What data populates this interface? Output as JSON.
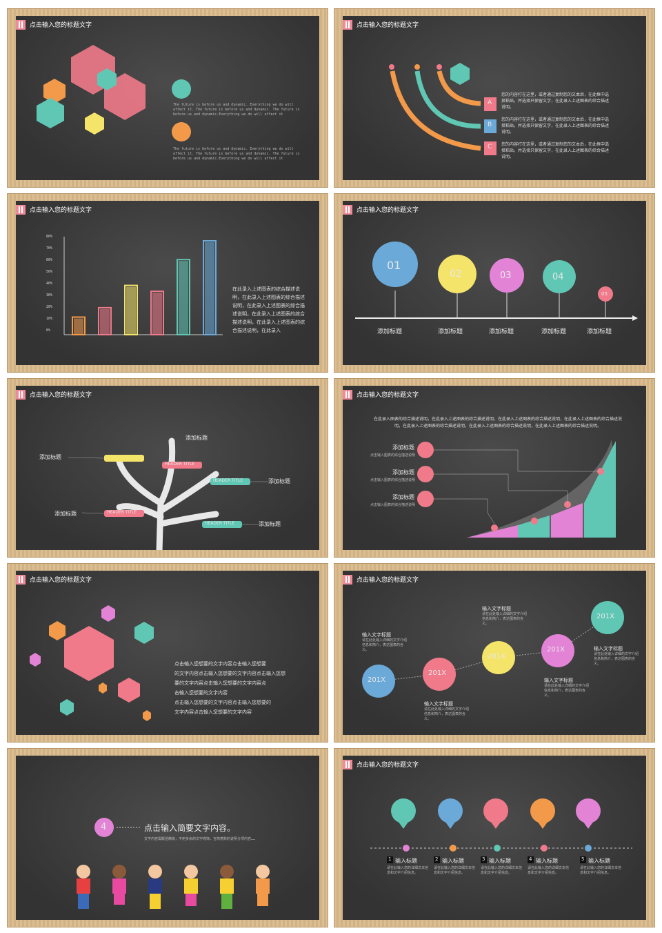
{
  "header_title": "点击输入您的标题文字",
  "slide1": {
    "texts": [
      "The future is before us and dynamic. Everything we do will affect it. The future is before us and dynamic. The future is before us and dynamic.Everything we do will affect it",
      "The future is before us and dynamic. Everything we do will affect it. The future is before us and dynamic. The future is before us and dynamic.Everything we do will affect it"
    ]
  },
  "slide2": {
    "letters": [
      "A",
      "B",
      "C"
    ],
    "texts": [
      "您的内容打在这里，或者通过复制您的文本后，在此框中选择粘贴，并选择只保留文字，在此录入上述图表的综合描述说明。",
      "您的内容打在这里，或者通过复制您的文本后，在此框中选择粘贴，并选择只保留文字，在此录入上述图表的综合描述说明。",
      "您的内容打在这里，或者通过复制您的文本后，在此框中选择粘贴，并选择只保留文字，在此录入上述图表的综合描述说明。"
    ]
  },
  "slide3": {
    "yticks": [
      "80%",
      "70%",
      "60%",
      "50%",
      "40%",
      "30%",
      "20%",
      "10%",
      "0%"
    ],
    "chart_data": {
      "type": "bar",
      "values": [
        15,
        23,
        42,
        37,
        64,
        80
      ],
      "ylim": [
        0,
        80
      ]
    },
    "desc": "在此录入上述图表的综合描述说明，在此录入上述图表的综合描述说明，在此录入上述图表的综合描述说明，在此录入上述图表的综合描述说明，在此录入上述图表的综合描述说明，在此录入"
  },
  "slide4": {
    "nums": [
      "01",
      "02",
      "03",
      "04",
      "05"
    ],
    "labels": [
      "添加标题",
      "添加标题",
      "添加标题",
      "添加标题",
      "添加标题"
    ]
  },
  "slide5": {
    "labels": [
      "添加标题",
      "添加标题",
      "添加标题",
      "添加标题",
      "添加标题"
    ],
    "tags": [
      "HEADER TITLE",
      "HEADER TITLE",
      "HEADER TITLE",
      "HEADER TITLE"
    ]
  },
  "slide6": {
    "intro": "在此录入图表的综合描述说明，在此录入上述图表的综合描述说明，在此录入上述图表的综合描述说明，在此录入上述图表的综合描述说明，在此录入上述图表的综合描述说明，在此录入上述图表的综合描述说明，在此录入上述图表的综合描述说明。",
    "items": [
      {
        "title": "添加标题",
        "sub": "点击输入图表的综合描述说明"
      },
      {
        "title": "添加标题",
        "sub": "点击输入图表的综合描述说明"
      },
      {
        "title": "添加标题",
        "sub": "点击输入图表的综合描述说明"
      }
    ]
  },
  "slide7": {
    "lines": [
      "点击输入您想要的文字内容点击输入您想要",
      "的文字内容点击输入您想要的文字内容点击输入您想",
      "要的文字内容点击输入您想要的文字内容点",
      "击输入您想要的文字内容",
      "点击输入您想要的文字内容点击输入您想要的",
      "文字内容点击输入您想要的文字内容"
    ]
  },
  "slide8": {
    "circle_label": "201X",
    "title": "输入文字标题",
    "desc": "请在此处输入详细的文字介绍信息和简介，表达图表的含义。"
  },
  "slide9": {
    "num": "4",
    "title": "点击输入简要文字内容。",
    "desc": "文字内容需概括精炼，不用多余的文字修饰，言简意赅的说明分项内容……"
  },
  "slide10": {
    "nums": [
      "1",
      "2",
      "3",
      "4",
      "5"
    ],
    "title": "输入标题",
    "desc": "请在此输入您的详细文本信息和文字介绍信息。"
  }
}
